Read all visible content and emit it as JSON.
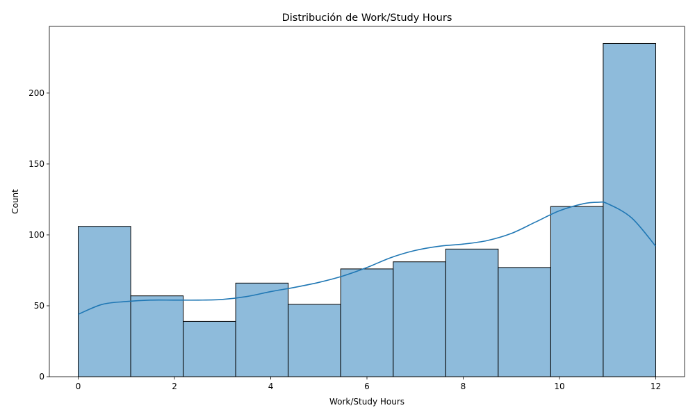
{
  "chart_data": {
    "type": "bar",
    "title": "Distribución de Work/Study Hours",
    "xlabel": "Work/Study Hours",
    "ylabel": "Count",
    "xlim": [
      -0.6,
      12.6
    ],
    "ylim": [
      0,
      247
    ],
    "x_ticks": [
      0,
      2,
      4,
      6,
      8,
      10,
      12
    ],
    "y_ticks": [
      0,
      50,
      100,
      150,
      200
    ],
    "bins": [
      {
        "x0": 0.0,
        "x1": 1.0909,
        "count": 106
      },
      {
        "x0": 1.0909,
        "x1": 2.1818,
        "count": 57
      },
      {
        "x0": 2.1818,
        "x1": 3.2727,
        "count": 39
      },
      {
        "x0": 3.2727,
        "x1": 4.3636,
        "count": 66
      },
      {
        "x0": 4.3636,
        "x1": 5.4545,
        "count": 51
      },
      {
        "x0": 5.4545,
        "x1": 6.5455,
        "count": 76
      },
      {
        "x0": 6.5455,
        "x1": 7.6364,
        "count": 81
      },
      {
        "x0": 7.6364,
        "x1": 8.7273,
        "count": 90
      },
      {
        "x0": 8.7273,
        "x1": 9.8182,
        "count": 77
      },
      {
        "x0": 9.8182,
        "x1": 10.9091,
        "count": 120
      },
      {
        "x0": 10.9091,
        "x1": 12.0,
        "count": 235
      }
    ],
    "kde": {
      "x": [
        0,
        0.5,
        1,
        1.5,
        2,
        2.5,
        3,
        3.5,
        4,
        4.5,
        5,
        5.5,
        6,
        6.5,
        7,
        7.5,
        8,
        8.5,
        9,
        9.5,
        10,
        10.5,
        10.8,
        11,
        11.5,
        12
      ],
      "y": [
        44,
        51,
        53,
        54,
        54,
        54,
        54.5,
        56.5,
        60,
        63,
        66.5,
        71,
        77,
        84,
        89,
        92,
        93.5,
        96,
        101,
        109,
        117,
        122,
        123,
        122,
        112,
        92
      ]
    },
    "colors": {
      "bar_fill": "#8ebbdb",
      "bar_edge": "#000000",
      "kde_line": "#1f77b4"
    },
    "grid": false,
    "legend": "none"
  }
}
